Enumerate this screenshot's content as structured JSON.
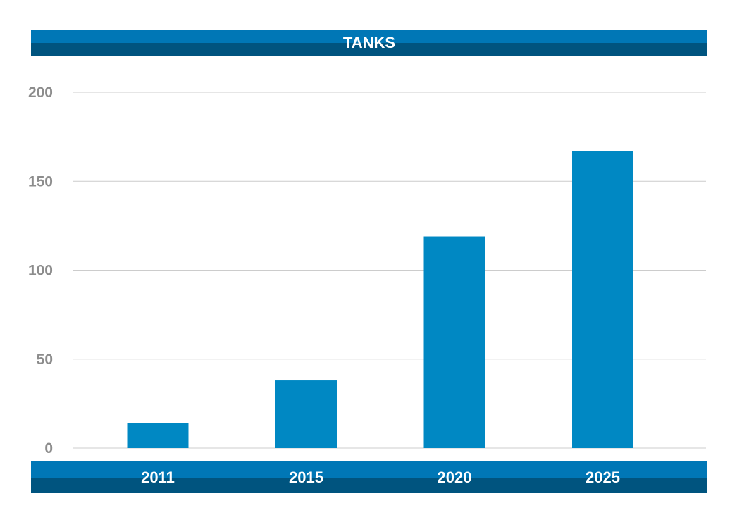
{
  "chart_data": {
    "type": "bar",
    "title": "TANKS",
    "categories": [
      "2011",
      "2015",
      "2020",
      "2025"
    ],
    "values": [
      14,
      38,
      119,
      167
    ],
    "ylim": [
      0,
      200
    ],
    "yticks": [
      0,
      50,
      100,
      150,
      200
    ],
    "grid": true,
    "legend": "none"
  },
  "colors": {
    "bar": "#0088c3",
    "band_top": "#0077b6",
    "band_bottom": "#00547f",
    "grid": "#cccccc",
    "tick_text": "#8c8c8c"
  }
}
